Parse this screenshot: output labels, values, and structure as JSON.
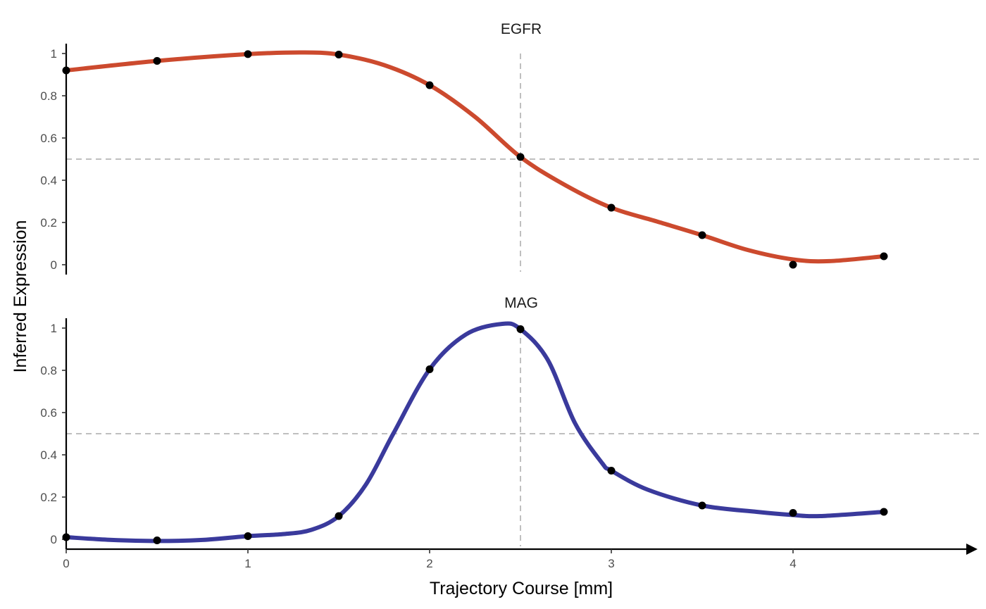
{
  "chart_data": {
    "type": "line",
    "xlabel": "Trajectory Course [mm]",
    "ylabel": "Inferred Expression",
    "xlim": [
      0,
      5.05
    ],
    "x_ticks": [
      0,
      1,
      2,
      3,
      4
    ],
    "x_tick_labels": [
      "0",
      "1",
      "2",
      "3",
      "4"
    ],
    "reference_lines": {
      "x": 2.5,
      "y": 0.5,
      "style": "dashed",
      "color": "#bfbfbf"
    },
    "grid": false,
    "panels": [
      {
        "title": "EGFR",
        "color": "#cc4a2e",
        "ylim": [
          -0.04,
          1.05
        ],
        "y_ticks": [
          0,
          0.2,
          0.4,
          0.6,
          0.8,
          1
        ],
        "y_tick_labels": [
          "0",
          "0.2",
          "0.4",
          "0.6",
          "0.8",
          "1"
        ],
        "points": {
          "x": [
            0,
            0.5,
            1,
            1.5,
            2,
            2.5,
            3,
            3.5,
            4,
            4.5
          ],
          "y": [
            0.92,
            0.965,
            0.997,
            0.995,
            0.85,
            0.51,
            0.27,
            0.14,
            0.0,
            0.04
          ]
        },
        "fit": {
          "x": [
            0,
            0.5,
            1,
            1.3,
            1.5,
            1.75,
            2,
            2.25,
            2.5,
            2.75,
            3,
            3.25,
            3.5,
            3.75,
            4,
            4.2,
            4.5
          ],
          "y": [
            0.92,
            0.965,
            0.997,
            1.005,
            0.995,
            0.945,
            0.85,
            0.7,
            0.51,
            0.375,
            0.27,
            0.205,
            0.14,
            0.07,
            0.025,
            0.017,
            0.04
          ]
        }
      },
      {
        "title": "MAG",
        "color": "#3a3a9c",
        "ylim": [
          -0.04,
          1.05
        ],
        "y_ticks": [
          0,
          0.2,
          0.4,
          0.6,
          0.8,
          1
        ],
        "y_tick_labels": [
          "0",
          "0.2",
          "0.4",
          "0.6",
          "0.8",
          "1"
        ],
        "points": {
          "x": [
            0,
            0.5,
            1,
            1.5,
            2,
            2.5,
            3,
            3.5,
            4,
            4.5
          ],
          "y": [
            0.01,
            -0.005,
            0.015,
            0.11,
            0.805,
            0.995,
            0.325,
            0.16,
            0.125,
            0.13
          ]
        },
        "fit": {
          "x": [
            0,
            0.25,
            0.5,
            0.75,
            1,
            1.2,
            1.35,
            1.5,
            1.65,
            1.8,
            2,
            2.2,
            2.4,
            2.5,
            2.65,
            2.8,
            2.95,
            3,
            3.2,
            3.5,
            3.8,
            4,
            4.15,
            4.5
          ],
          "y": [
            0.01,
            -0.003,
            -0.008,
            -0.003,
            0.015,
            0.025,
            0.045,
            0.11,
            0.26,
            0.5,
            0.805,
            0.97,
            1.02,
            0.995,
            0.85,
            0.55,
            0.36,
            0.325,
            0.235,
            0.16,
            0.13,
            0.115,
            0.11,
            0.13
          ]
        }
      }
    ]
  }
}
